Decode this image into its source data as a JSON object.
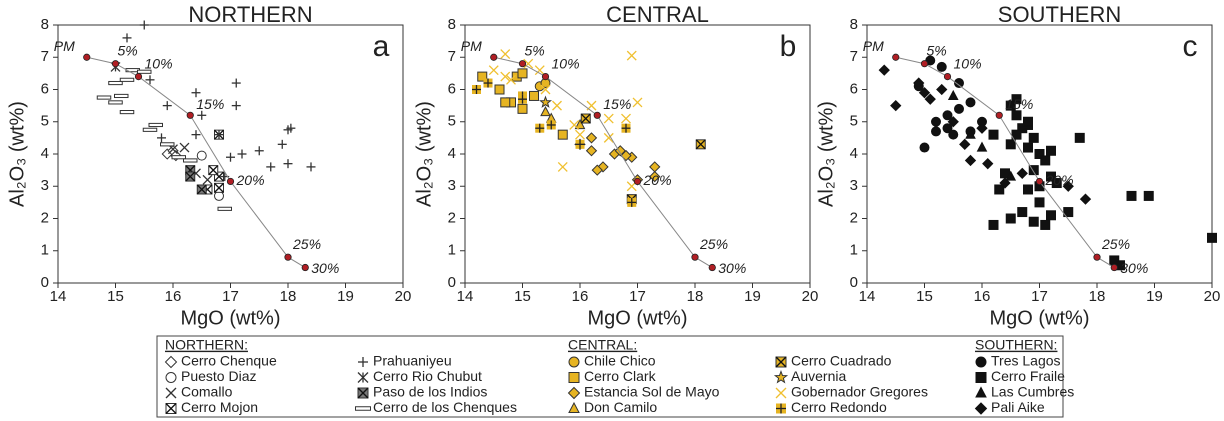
{
  "chart_data": [
    {
      "type": "scatter",
      "title": "NORTHERN",
      "panel_label": "a",
      "legend_heading": "NORTHERN:",
      "xlabel": "MgO (wt%)",
      "ylabel": "Al₂O₃ (wt%)",
      "xlim": [
        14,
        20
      ],
      "ylim": [
        0,
        8
      ],
      "xticks": [
        14,
        15,
        16,
        17,
        18,
        19,
        20
      ],
      "yticks": [
        0,
        1,
        2,
        3,
        4,
        5,
        6,
        7,
        8
      ],
      "melt": {
        "labels": [
          "PM",
          "5%",
          "10%",
          "15%",
          "20%",
          "25%",
          "30%"
        ],
        "x": [
          14.5,
          15.0,
          15.4,
          16.3,
          17.0,
          18.0,
          18.3
        ],
        "y": [
          7.0,
          6.8,
          6.4,
          5.2,
          3.15,
          0.8,
          0.48
        ],
        "color": "#b01e24"
      },
      "series": [
        {
          "name": "Cerro Chenque",
          "marker": "diamond",
          "color": "#333",
          "fill": "#fff",
          "x": [
            15.9,
            16.0,
            16.05
          ],
          "y": [
            4.0,
            4.1,
            3.95
          ]
        },
        {
          "name": "Puesto Diaz",
          "marker": "circle",
          "color": "#333",
          "fill": "#fff",
          "x": [
            16.5,
            16.8
          ],
          "y": [
            3.95,
            2.7
          ]
        },
        {
          "name": "Comallo",
          "marker": "x",
          "color": "#333",
          "fill": "#fff",
          "x": [
            16.2,
            16.0,
            16.6,
            16.4
          ],
          "y": [
            4.2,
            4.15,
            3.2,
            3.4
          ]
        },
        {
          "name": "Cerro Mojon",
          "marker": "boxx",
          "color": "#333",
          "fill": "#fff",
          "x": [
            16.8,
            16.8,
            16.6,
            16.7,
            16.8
          ],
          "y": [
            4.6,
            3.3,
            2.9,
            3.5,
            2.95
          ]
        },
        {
          "name": "Prahuaniyeu",
          "marker": "plus",
          "color": "#333",
          "fill": "#fff",
          "x": [
            15.2,
            15.5,
            15.6,
            15.9,
            16.4,
            16.5,
            16.4,
            16.8,
            17.1,
            17.1,
            17.0,
            17.2,
            17.5,
            17.9,
            18.0,
            18.05,
            18.0,
            18.4,
            15.8,
            16.9,
            17.7
          ],
          "y": [
            7.6,
            8.0,
            6.3,
            5.5,
            5.9,
            5.2,
            4.6,
            4.6,
            6.2,
            5.5,
            3.9,
            4.0,
            4.1,
            4.3,
            4.75,
            4.8,
            3.7,
            3.6,
            4.5,
            3.3,
            3.6
          ]
        },
        {
          "name": "Cerro Rio Chubut",
          "marker": "asterisk",
          "color": "#333",
          "fill": "#fff",
          "x": [
            15.0
          ],
          "y": [
            6.7
          ]
        },
        {
          "name": "Paso de los Indios",
          "marker": "boxx",
          "color": "#333",
          "fill": "#777",
          "x": [
            16.5,
            16.3,
            16.3
          ],
          "y": [
            2.9,
            3.5,
            3.3
          ]
        },
        {
          "name": "Cerro de los Chenques",
          "marker": "dash",
          "color": "#333",
          "fill": "#fff",
          "x": [
            14.8,
            15.0,
            15.2,
            15.0,
            15.2,
            15.3,
            15.5,
            15.7,
            15.6,
            15.9,
            16.1,
            16.3,
            16.9,
            15.1
          ],
          "y": [
            5.75,
            5.6,
            5.3,
            6.2,
            6.3,
            6.6,
            6.55,
            4.9,
            4.75,
            4.3,
            3.9,
            3.8,
            2.3,
            5.8
          ]
        }
      ]
    },
    {
      "type": "scatter",
      "title": "CENTRAL",
      "panel_label": "b",
      "legend_heading": "CENTRAL:",
      "xlabel": "MgO (wt%)",
      "ylabel": "Al₂O₃ (wt%)",
      "xlim": [
        14,
        20
      ],
      "ylim": [
        0,
        8
      ],
      "xticks": [
        14,
        15,
        16,
        17,
        18,
        19,
        20
      ],
      "yticks": [
        0,
        1,
        2,
        3,
        4,
        5,
        6,
        7,
        8
      ],
      "melt": {
        "labels": [
          "PM",
          "5%",
          "10%",
          "15%",
          "20%",
          "25%",
          "30%"
        ],
        "x": [
          14.5,
          15.0,
          15.4,
          16.3,
          17.0,
          18.0,
          18.3
        ],
        "y": [
          7.0,
          6.8,
          6.4,
          5.2,
          3.15,
          0.8,
          0.48
        ],
        "color": "#b01e24"
      },
      "series": [
        {
          "name": "Chile Chico",
          "marker": "circle",
          "color": "#333",
          "fill": "#e6b422",
          "x": [
            15.3,
            15.4
          ],
          "y": [
            6.1,
            6.2
          ]
        },
        {
          "name": "Cerro Clark",
          "marker": "square",
          "color": "#333",
          "fill": "#e6b422",
          "x": [
            14.3,
            14.6,
            14.8,
            15.0,
            14.9,
            15.0,
            15.2,
            15.7,
            14.7
          ],
          "y": [
            6.4,
            6.0,
            5.6,
            5.4,
            6.4,
            6.5,
            5.8,
            4.6,
            5.6
          ]
        },
        {
          "name": "Estancia Sol de Mayo",
          "marker": "diamond",
          "color": "#333",
          "fill": "#e6b422",
          "x": [
            16.0,
            16.2,
            16.4,
            16.6,
            16.7,
            16.9,
            17.0,
            17.3,
            17.3,
            16.3,
            16.8,
            16.2
          ],
          "y": [
            4.3,
            4.1,
            3.6,
            4.0,
            4.1,
            3.9,
            3.2,
            3.6,
            3.3,
            3.5,
            3.95,
            4.5
          ]
        },
        {
          "name": "Don Camilo",
          "marker": "triangle",
          "color": "#333",
          "fill": "#e6b422",
          "x": [
            15.4,
            15.5,
            16.0
          ],
          "y": [
            5.3,
            5.1,
            4.9
          ]
        },
        {
          "name": "Cerro Cuadrado",
          "marker": "boxx",
          "color": "#333",
          "fill": "#e6b422",
          "x": [
            18.1,
            16.9,
            16.1
          ],
          "y": [
            4.3,
            2.6,
            5.1
          ]
        },
        {
          "name": "Auvernia",
          "marker": "star",
          "color": "#333",
          "fill": "#e6b422",
          "x": [
            15.4
          ],
          "y": [
            5.6
          ]
        },
        {
          "name": "Gobernador Gregores",
          "marker": "x",
          "color": "#f0c030",
          "fill": "#f0c030",
          "x": [
            14.7,
            14.5,
            15.1,
            15.3,
            14.8,
            15.4,
            15.6,
            15.7,
            16.0,
            16.2,
            16.5,
            16.8,
            16.9,
            17.0,
            16.9,
            15.9,
            14.7,
            16.5
          ],
          "y": [
            7.1,
            6.6,
            6.8,
            6.6,
            6.3,
            6.0,
            5.5,
            3.6,
            4.6,
            5.5,
            5.1,
            5.1,
            7.05,
            5.6,
            3.0,
            4.9,
            6.4,
            4.5
          ]
        },
        {
          "name": "Cerro Redondo",
          "marker": "boxplus",
          "color": "#333",
          "fill": "#e6b422",
          "x": [
            14.2,
            14.4,
            15.0,
            15.3,
            15.5,
            15.0,
            16.8,
            16.9,
            16.0
          ],
          "y": [
            6.0,
            6.2,
            5.8,
            4.8,
            4.9,
            5.7,
            4.8,
            2.5,
            4.3
          ]
        }
      ]
    },
    {
      "type": "scatter",
      "title": "SOUTHERN",
      "panel_label": "c",
      "legend_heading": "SOUTHERN:",
      "xlabel": "MgO (wt%)",
      "ylabel": "Al₂O₃ (wt%)",
      "xlim": [
        14,
        20
      ],
      "ylim": [
        0,
        8
      ],
      "xticks": [
        14,
        15,
        16,
        17,
        18,
        19,
        20
      ],
      "yticks": [
        0,
        1,
        2,
        3,
        4,
        5,
        6,
        7,
        8
      ],
      "melt": {
        "labels": [
          "PM",
          "5%",
          "10%",
          "15%",
          "20%",
          "25%",
          "30%"
        ],
        "x": [
          14.5,
          15.0,
          15.4,
          16.3,
          17.0,
          18.0,
          18.3
        ],
        "y": [
          7.0,
          6.8,
          6.4,
          5.2,
          3.15,
          0.8,
          0.48
        ],
        "color": "#b01e24"
      },
      "series": [
        {
          "name": "Tres Lagos",
          "marker": "circle",
          "color": "#111",
          "fill": "#111",
          "x": [
            15.0,
            14.9,
            15.2,
            15.4,
            15.4,
            15.6,
            15.8,
            15.3,
            15.1,
            15.6,
            15.8,
            16.0,
            15.5,
            15.2
          ],
          "y": [
            4.2,
            6.1,
            5.0,
            5.2,
            4.8,
            5.4,
            4.7,
            6.7,
            6.9,
            6.2,
            5.6,
            5.0,
            4.6,
            4.7
          ]
        },
        {
          "name": "Cerro Fraile",
          "marker": "square",
          "color": "#111",
          "fill": "#111",
          "x": [
            16.5,
            16.6,
            16.7,
            16.6,
            16.8,
            16.9,
            16.8,
            17.0,
            17.1,
            17.2,
            16.5,
            16.9,
            17.0,
            17.3,
            16.8,
            17.0,
            16.7,
            16.9,
            17.1,
            17.2,
            16.5,
            16.2,
            17.5,
            17.7,
            16.8,
            18.6,
            18.9,
            20.0,
            18.3,
            18.4,
            16.4,
            16.2,
            16.6,
            17.2,
            16.3
          ],
          "y": [
            5.5,
            5.2,
            4.8,
            4.6,
            4.9,
            4.5,
            4.2,
            4.0,
            3.8,
            4.1,
            4.3,
            3.5,
            3.0,
            3.1,
            2.9,
            2.5,
            2.2,
            1.9,
            1.8,
            2.1,
            2.0,
            1.8,
            2.2,
            4.5,
            5.0,
            2.7,
            2.7,
            1.4,
            0.7,
            0.55,
            3.4,
            4.6,
            5.7,
            3.3,
            2.9
          ]
        },
        {
          "name": "Las Cumbres",
          "marker": "triangle",
          "color": "#111",
          "fill": "#111",
          "x": [
            15.8,
            16.0,
            15.5,
            16.5
          ],
          "y": [
            4.6,
            4.2,
            5.8,
            3.3
          ]
        },
        {
          "name": "Pali Aike",
          "marker": "diamond",
          "color": "#111",
          "fill": "#111",
          "x": [
            14.3,
            14.5,
            15.0,
            15.1,
            15.3,
            15.5,
            15.7,
            16.1,
            16.4,
            16.7,
            17.5,
            17.8,
            16.0,
            15.8,
            14.9
          ],
          "y": [
            6.6,
            5.5,
            5.9,
            5.7,
            6.0,
            5.0,
            4.3,
            3.7,
            3.1,
            3.4,
            3.0,
            2.6,
            4.8,
            3.8,
            6.2
          ]
        }
      ]
    }
  ]
}
